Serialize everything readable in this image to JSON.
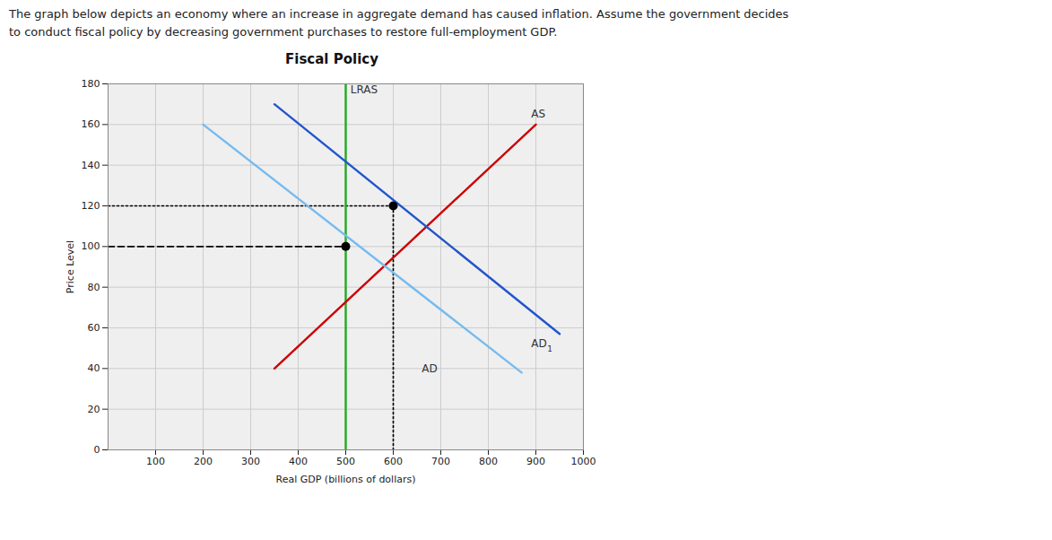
{
  "chart_data": {
    "type": "line",
    "title": "Fiscal Policy",
    "subtitle": "The graph below depicts an economy where an increase in aggregate demand has caused inflation. Assume the government decides\nto conduct fiscal policy by decreasing government purchases to restore full-employment GDP.",
    "xlabel": "Real GDP (billions of dollars)",
    "ylabel": "Price Level",
    "xlim": [
      0,
      1000
    ],
    "ylim": [
      0,
      180
    ],
    "xticks": [
      100,
      200,
      300,
      400,
      500,
      600,
      700,
      800,
      900,
      1000
    ],
    "yticks": [
      0,
      20,
      40,
      60,
      80,
      100,
      120,
      140,
      160,
      180
    ],
    "grid": true,
    "series": [
      {
        "type": "line",
        "color": "#22aa22",
        "x": [
          500,
          500
        ],
        "values": [
          0,
          180
        ]
      },
      {
        "type": "line",
        "color": "#cc0000",
        "x": [
          350,
          900
        ],
        "values": [
          40,
          160
        ]
      },
      {
        "type": "line",
        "color": "#2255cc",
        "x": [
          350,
          950
        ],
        "values": [
          170,
          57
        ]
      },
      {
        "type": "line",
        "color": "#77bbee",
        "x": [
          200,
          870
        ],
        "values": [
          160,
          38
        ]
      },
      {
        "type": "line",
        "color": "#000000",
        "line_style": "dashed",
        "x": [
          0,
          500
        ],
        "values": [
          100,
          100
        ]
      },
      {
        "type": "line",
        "color": "#000000",
        "line_style": "dotted",
        "x": [
          0,
          600
        ],
        "values": [
          120,
          120
        ]
      },
      {
        "type": "line",
        "color": "#000000",
        "line_style": "dotted",
        "x": [
          600,
          600
        ],
        "values": [
          0,
          120
        ]
      },
      {
        "type": "scatter",
        "color": "#000000",
        "marker": "circle",
        "x": [
          500,
          600
        ],
        "values": [
          100,
          120
        ]
      }
    ],
    "annotations": [
      {
        "text": "LRAS",
        "x": 510,
        "y": 177
      },
      {
        "text": "AS",
        "x": 890,
        "y": 165
      },
      {
        "text": "AD",
        "subscript": "1",
        "x": 890,
        "y": 52
      },
      {
        "text": "AD",
        "x": 660,
        "y": 40
      }
    ]
  }
}
